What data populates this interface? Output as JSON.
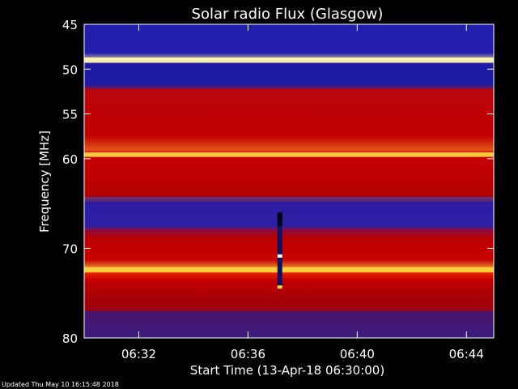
{
  "chart_data": {
    "type": "heatmap",
    "title": "Solar radio Flux (Glasgow)",
    "xlabel": "Start Time (13-Apr-18 06:30:00)",
    "ylabel": "Frequency [MHz]",
    "x_unit": "time",
    "y_unit": "MHz",
    "xlim": [
      "06:30:00",
      "06:45:00"
    ],
    "ylim": [
      45,
      80
    ],
    "x_ticks": [
      "06:32",
      "06:36",
      "06:40",
      "06:44"
    ],
    "y_ticks": [
      45,
      50,
      55,
      60,
      70,
      80
    ],
    "grid": false,
    "colormap": "blue-red-yellow-white",
    "colors": {
      "background": "#000000",
      "axes": "#ffffff",
      "low": "#1f1ea6",
      "mid": "#c00000",
      "high": "#ffd23b",
      "peak": "#ffffff"
    },
    "bands": [
      {
        "from": 45.0,
        "to": 48.7,
        "level": "low"
      },
      {
        "from": 48.7,
        "to": 49.3,
        "level": "peak"
      },
      {
        "from": 49.3,
        "to": 52.2,
        "level": "low"
      },
      {
        "from": 52.2,
        "to": 64.2,
        "level": "mid"
      },
      {
        "from": 59.3,
        "to": 59.8,
        "level": "high"
      },
      {
        "from": 64.2,
        "to": 67.7,
        "level": "low"
      },
      {
        "from": 67.7,
        "to": 72.1,
        "level": "mid"
      },
      {
        "from": 72.1,
        "to": 72.7,
        "level": "high"
      },
      {
        "from": 72.7,
        "to": 77.0,
        "level": "mid"
      },
      {
        "from": 77.0,
        "to": 80.0,
        "level": "low"
      }
    ],
    "bursts": [
      {
        "time": "06:37:10",
        "from": 66.0,
        "to": 74.5,
        "level": "high"
      }
    ]
  },
  "footer": {
    "updated": "Updated Thu May 10 16:15:48 2018"
  }
}
